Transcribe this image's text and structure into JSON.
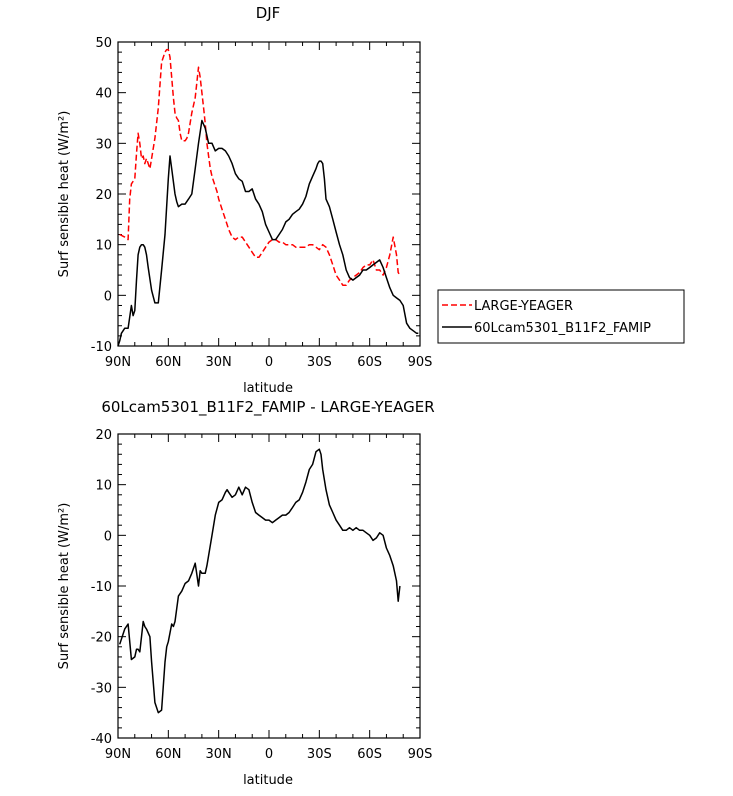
{
  "chart_data": [
    {
      "type": "line",
      "title": "DJF",
      "xlabel": "latitude",
      "ylabel": "Surf sensible heat (W/m²)",
      "xlim": [
        90,
        -90
      ],
      "ylim": [
        -10,
        50
      ],
      "xticks": [
        {
          "value": 90,
          "label": "90N"
        },
        {
          "value": 60,
          "label": "60N"
        },
        {
          "value": 30,
          "label": "30N"
        },
        {
          "value": 0,
          "label": "0"
        },
        {
          "value": -30,
          "label": "30S"
        },
        {
          "value": -60,
          "label": "60S"
        },
        {
          "value": -90,
          "label": "90S"
        }
      ],
      "yticks": [
        -10,
        0,
        10,
        20,
        30,
        40,
        50
      ],
      "legend": "right-outside",
      "series": [
        {
          "name": "LARGE-YEAGER",
          "color": "#ff0000",
          "style": "dashed",
          "x": [
            89,
            86,
            84,
            83,
            82,
            80,
            79,
            78,
            77,
            76,
            75,
            74,
            73,
            71,
            70,
            68,
            66,
            64,
            62,
            61,
            60,
            59,
            58,
            57,
            56,
            55,
            54,
            53,
            52,
            51,
            50,
            49,
            48,
            46,
            44,
            42,
            41,
            40,
            39,
            38,
            37,
            36,
            35,
            34,
            33,
            32,
            31,
            30,
            28,
            26,
            24,
            22,
            20,
            18,
            16,
            14,
            12,
            10,
            8,
            6,
            4,
            2,
            0,
            -2,
            -4,
            -6,
            -8,
            -10,
            -12,
            -14,
            -16,
            -18,
            -20,
            -22,
            -24,
            -26,
            -28,
            -30,
            -32,
            -34,
            -36,
            -38,
            -40,
            -42,
            -44,
            -46,
            -48,
            -50,
            -52,
            -54,
            -56,
            -58,
            -60,
            -62,
            -64,
            -66,
            -68,
            -70,
            -72,
            -74,
            -76,
            -77,
            -78
          ],
          "values": [
            12,
            11.5,
            11,
            19,
            22,
            23,
            28,
            32,
            30,
            27,
            27.5,
            26,
            27,
            25,
            27,
            31,
            37,
            46,
            48,
            48.5,
            48.5,
            47,
            43,
            39,
            36,
            35,
            34.5,
            32,
            30.5,
            30.5,
            30.5,
            31,
            32,
            36,
            39,
            45,
            43,
            40,
            37,
            34,
            30,
            27.5,
            25,
            23.5,
            22.5,
            21.5,
            20.5,
            19,
            17,
            15,
            13,
            11.5,
            11,
            11.5,
            11.5,
            10.5,
            9.5,
            8.5,
            7.5,
            7.5,
            8.5,
            9.5,
            10.5,
            11,
            11,
            10.5,
            10.5,
            10,
            10,
            10,
            9.5,
            9.5,
            9.5,
            9.5,
            10,
            10,
            9.5,
            9,
            10,
            9.5,
            8,
            6,
            4,
            3,
            2,
            2,
            3,
            3.5,
            4,
            4.5,
            5.5,
            6,
            6,
            7,
            5,
            5,
            4,
            5.5,
            8,
            11.5,
            8,
            4.5,
            4
          ]
        },
        {
          "name": "60Lcam5301_B11F2_FAMIP",
          "color": "#000000",
          "style": "solid",
          "x": [
            90,
            89,
            88,
            86,
            84,
            82,
            81,
            80,
            79,
            78,
            77,
            76,
            75,
            74,
            73,
            72,
            70,
            68,
            66,
            64,
            62,
            60,
            59,
            58,
            56,
            55,
            54,
            52,
            50,
            48,
            46,
            44,
            42,
            40,
            38,
            36,
            34,
            32,
            30,
            28,
            26,
            24,
            22,
            20,
            18,
            16,
            14,
            12,
            10,
            8,
            6,
            4,
            2,
            0,
            -2,
            -4,
            -6,
            -8,
            -10,
            -12,
            -14,
            -16,
            -18,
            -20,
            -22,
            -24,
            -26,
            -28,
            -29,
            -30,
            -31,
            -32,
            -33,
            -34,
            -36,
            -38,
            -40,
            -42,
            -44,
            -46,
            -48,
            -50,
            -52,
            -54,
            -56,
            -58,
            -60,
            -62,
            -64,
            -66,
            -68,
            -70,
            -72,
            -74,
            -76,
            -78,
            -80,
            -82,
            -84,
            -86,
            -88,
            -89
          ],
          "values": [
            -10,
            -9,
            -7.5,
            -6.5,
            -6.5,
            -2,
            -4,
            -3,
            3,
            8,
            9.5,
            10,
            10,
            9.5,
            8,
            5.5,
            1,
            -1.5,
            -1.5,
            5,
            12,
            23,
            27.5,
            25,
            20,
            18.5,
            17.5,
            18,
            18,
            19,
            20,
            25,
            30,
            34.5,
            33,
            30,
            30,
            28.5,
            29,
            29,
            28.5,
            27.5,
            26,
            24,
            23,
            22.5,
            20.5,
            20.5,
            21,
            19,
            18,
            16.5,
            14,
            12.5,
            11,
            11,
            12,
            13,
            14.5,
            15,
            16,
            16.5,
            17,
            18,
            19.5,
            22,
            23.5,
            25,
            26,
            26.5,
            26.5,
            26,
            23,
            19,
            17.5,
            15,
            12.5,
            10,
            8,
            5,
            3.5,
            3,
            3.5,
            4,
            5,
            5,
            5.5,
            6,
            6.5,
            7,
            5.5,
            3.5,
            1.5,
            0,
            -0.5,
            -1,
            -2,
            -5.5,
            -6.5,
            -7,
            -7.5,
            -7.5
          ]
        }
      ]
    },
    {
      "type": "line",
      "title": "60Lcam5301_B11F2_FAMIP - LARGE-YEAGER",
      "xlabel": "latitude",
      "ylabel": "Surf sensible heat (W/m²)",
      "xlim": [
        90,
        -90
      ],
      "ylim": [
        -40,
        20
      ],
      "xticks": [
        {
          "value": 90,
          "label": "90N"
        },
        {
          "value": 60,
          "label": "60N"
        },
        {
          "value": 30,
          "label": "30N"
        },
        {
          "value": 0,
          "label": "0"
        },
        {
          "value": -30,
          "label": "30S"
        },
        {
          "value": -60,
          "label": "60S"
        },
        {
          "value": -90,
          "label": "90S"
        }
      ],
      "yticks": [
        -40,
        -30,
        -20,
        -10,
        0,
        10,
        20
      ],
      "series": [
        {
          "color": "#000000",
          "style": "solid",
          "x": [
            89,
            88,
            86,
            84,
            82,
            80,
            79,
            78,
            77,
            75,
            74,
            73,
            71,
            70,
            68,
            66,
            64,
            62,
            61,
            60,
            58,
            57,
            56,
            55,
            54,
            52,
            50,
            48,
            46,
            44,
            42,
            41,
            40,
            39,
            38,
            37,
            36,
            34,
            32,
            30,
            28,
            26,
            25,
            24,
            22,
            20,
            18,
            16,
            14,
            12,
            10,
            8,
            6,
            4,
            2,
            0,
            -2,
            -4,
            -6,
            -8,
            -10,
            -12,
            -14,
            -16,
            -18,
            -20,
            -22,
            -24,
            -26,
            -28,
            -30,
            -31,
            -32,
            -34,
            -36,
            -38,
            -40,
            -42,
            -44,
            -46,
            -48,
            -50,
            -52,
            -54,
            -56,
            -58,
            -60,
            -62,
            -64,
            -66,
            -68,
            -70,
            -72,
            -74,
            -76,
            -77,
            -78
          ],
          "values": [
            -21.5,
            -20.5,
            -18.5,
            -17.5,
            -24.5,
            -24,
            -22.5,
            -22.5,
            -23,
            -17,
            -18,
            -18.5,
            -20,
            -25,
            -33,
            -35,
            -34.5,
            -25,
            -22,
            -21,
            -17.5,
            -18,
            -17,
            -14.5,
            -12,
            -11,
            -9.5,
            -9,
            -7.5,
            -5.5,
            -10,
            -7,
            -7.5,
            -7.5,
            -7.5,
            -6,
            -4,
            0,
            4,
            6.5,
            7,
            8.5,
            9,
            8.5,
            7.5,
            8,
            9.5,
            8,
            9.5,
            9,
            6.5,
            4.5,
            4,
            3.5,
            3,
            3,
            2.5,
            3,
            3.5,
            4,
            4,
            4.5,
            5.5,
            6.5,
            7,
            8.5,
            10.5,
            13,
            14,
            16.5,
            17,
            16,
            13,
            9,
            6,
            4.5,
            3,
            2,
            1,
            1,
            1.5,
            1,
            1.5,
            1,
            1,
            0.5,
            0,
            -1,
            -0.5,
            0.5,
            0,
            -2.5,
            -4,
            -6,
            -9,
            -13,
            -10
          ]
        }
      ]
    }
  ]
}
